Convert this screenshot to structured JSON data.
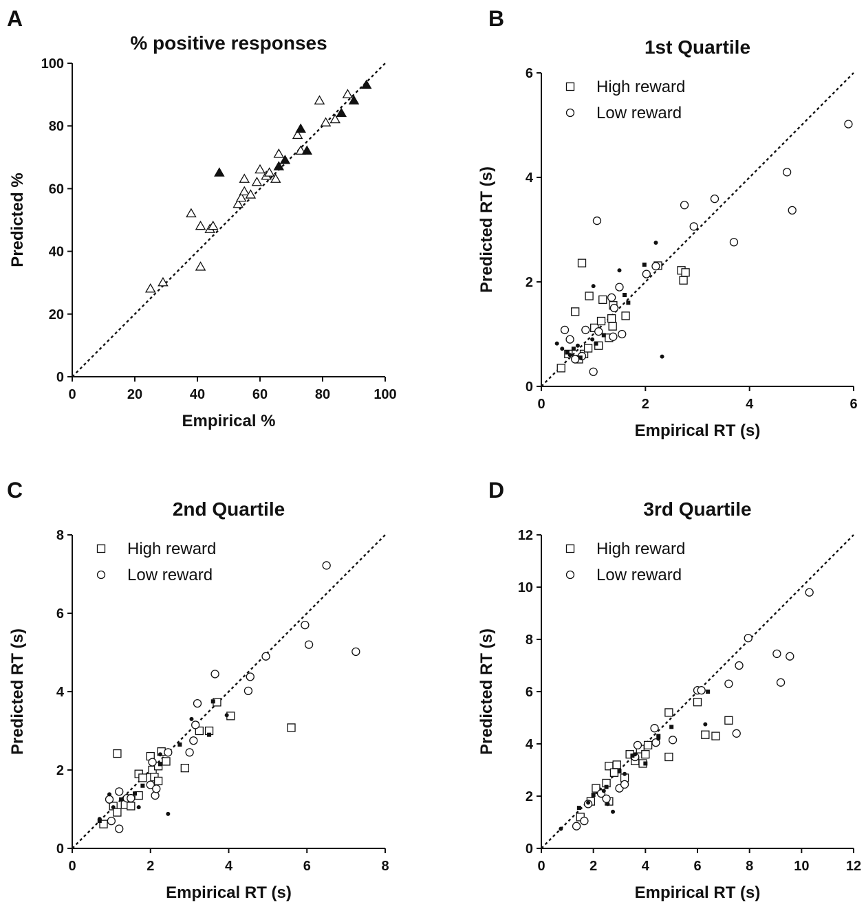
{
  "chart_data": [
    {
      "panel": "A",
      "type": "scatter",
      "title": "% positive responses",
      "xlabel": "Empirical %",
      "ylabel": "Predicted %",
      "xlim": [
        0,
        100
      ],
      "ylim": [
        0,
        100
      ],
      "xticks": [
        0,
        20,
        40,
        60,
        80,
        100
      ],
      "yticks": [
        0,
        20,
        40,
        60,
        80,
        100
      ],
      "grid": false,
      "identity_line": true,
      "legend": null,
      "series": [
        {
          "marker": "open-triangle",
          "points": [
            [
              25,
              28
            ],
            [
              29,
              30
            ],
            [
              38,
              52
            ],
            [
              41,
              48
            ],
            [
              41,
              35
            ],
            [
              44,
              47
            ],
            [
              45,
              48
            ],
            [
              53,
              55
            ],
            [
              54,
              57
            ],
            [
              55,
              63
            ],
            [
              55,
              59
            ],
            [
              57,
              58
            ],
            [
              59,
              62
            ],
            [
              60,
              66
            ],
            [
              62,
              64
            ],
            [
              63,
              65
            ],
            [
              65,
              63
            ],
            [
              66,
              71
            ],
            [
              72,
              77
            ],
            [
              73,
              72
            ],
            [
              79,
              88
            ],
            [
              81,
              81
            ],
            [
              84,
              82
            ],
            [
              88,
              90
            ]
          ]
        },
        {
          "marker": "filled-triangle",
          "points": [
            [
              47,
              65
            ],
            [
              66,
              67
            ],
            [
              68,
              69
            ],
            [
              73,
              79
            ],
            [
              75,
              72
            ],
            [
              86,
              84
            ],
            [
              90,
              88
            ],
            [
              94,
              93
            ]
          ]
        }
      ]
    },
    {
      "panel": "B",
      "type": "scatter",
      "title": "1st Quartile",
      "xlabel": "Empirical RT (s)",
      "ylabel": "Predicted RT (s)",
      "xlim": [
        0,
        6
      ],
      "ylim": [
        0,
        6
      ],
      "xticks": [
        0,
        2,
        4,
        6
      ],
      "yticks": [
        0,
        2,
        4,
        6
      ],
      "grid": false,
      "identity_line": true,
      "legend": {
        "position": "top-left",
        "entries": [
          {
            "marker": "open-square",
            "label": "High reward"
          },
          {
            "marker": "open-circle",
            "label": "Low reward"
          }
        ]
      },
      "series": [
        {
          "marker": "open-square",
          "points": [
            [
              0.38,
              0.35
            ],
            [
              0.65,
              1.43
            ],
            [
              0.78,
              2.36
            ],
            [
              0.92,
              1.73
            ],
            [
              1.02,
              1.12
            ],
            [
              1.1,
              0.78
            ],
            [
              1.15,
              1.25
            ],
            [
              1.18,
              1.66
            ],
            [
              1.3,
              0.93
            ],
            [
              1.35,
              1.3
            ],
            [
              1.37,
              1.15
            ],
            [
              1.38,
              1.55
            ],
            [
              1.62,
              1.35
            ],
            [
              2.69,
              2.22
            ],
            [
              2.73,
              2.03
            ],
            [
              2.77,
              2.18
            ],
            [
              2.24,
              2.31
            ],
            [
              0.52,
              0.62
            ],
            [
              0.72,
              0.52
            ],
            [
              0.82,
              0.62
            ],
            [
              0.9,
              0.73
            ]
          ]
        },
        {
          "marker": "open-circle",
          "points": [
            [
              0.45,
              1.08
            ],
            [
              0.55,
              0.9
            ],
            [
              0.65,
              0.52
            ],
            [
              0.78,
              0.58
            ],
            [
              0.85,
              1.08
            ],
            [
              1.0,
              0.28
            ],
            [
              1.07,
              3.17
            ],
            [
              1.1,
              1.05
            ],
            [
              1.35,
              1.7
            ],
            [
              1.38,
              0.95
            ],
            [
              1.4,
              1.5
            ],
            [
              1.5,
              1.9
            ],
            [
              1.55,
              1.0
            ],
            [
              2.02,
              2.15
            ],
            [
              2.2,
              2.3
            ],
            [
              2.75,
              3.47
            ],
            [
              2.93,
              3.06
            ],
            [
              3.33,
              3.59
            ],
            [
              3.7,
              2.76
            ],
            [
              4.72,
              4.1
            ],
            [
              4.82,
              3.37
            ],
            [
              5.9,
              5.02
            ]
          ]
        },
        {
          "marker": "filled-square",
          "points": [
            [
              0.5,
              0.65
            ],
            [
              0.62,
              0.72
            ],
            [
              0.75,
              0.55
            ],
            [
              1.05,
              0.82
            ],
            [
              1.2,
              0.98
            ],
            [
              1.6,
              1.75
            ],
            [
              1.67,
              1.6
            ],
            [
              1.98,
              2.33
            ]
          ]
        },
        {
          "marker": "filled-circle",
          "points": [
            [
              0.3,
              0.82
            ],
            [
              0.4,
              0.72
            ],
            [
              0.55,
              0.6
            ],
            [
              0.7,
              0.78
            ],
            [
              0.98,
              0.9
            ],
            [
              1.0,
              1.92
            ],
            [
              1.5,
              2.22
            ],
            [
              2.2,
              2.75
            ],
            [
              2.32,
              0.57
            ]
          ]
        }
      ]
    },
    {
      "panel": "C",
      "type": "scatter",
      "title": "2nd Quartile",
      "xlabel": "Empirical RT (s)",
      "ylabel": "Predicted RT (s)",
      "xlim": [
        0,
        8
      ],
      "ylim": [
        0,
        8
      ],
      "xticks": [
        0,
        2,
        4,
        6,
        8
      ],
      "yticks": [
        0,
        2,
        4,
        6,
        8
      ],
      "grid": false,
      "identity_line": true,
      "legend": {
        "position": "top-left",
        "entries": [
          {
            "marker": "open-square",
            "label": "High reward"
          },
          {
            "marker": "open-circle",
            "label": "Low reward"
          }
        ]
      },
      "series": [
        {
          "marker": "open-square",
          "points": [
            [
              0.8,
              0.62
            ],
            [
              1.05,
              1.08
            ],
            [
              1.15,
              0.92
            ],
            [
              1.15,
              2.42
            ],
            [
              1.35,
              1.12
            ],
            [
              1.5,
              1.08
            ],
            [
              1.7,
              1.35
            ],
            [
              1.7,
              1.9
            ],
            [
              1.8,
              1.8
            ],
            [
              2.0,
              2.35
            ],
            [
              2.05,
              2.0
            ],
            [
              2.1,
              1.82
            ],
            [
              2.2,
              1.72
            ],
            [
              2.2,
              2.1
            ],
            [
              2.28,
              2.47
            ],
            [
              2.4,
              2.22
            ],
            [
              2.88,
              2.05
            ],
            [
              3.25,
              3.0
            ],
            [
              3.5,
              3.0
            ],
            [
              3.7,
              3.73
            ],
            [
              4.05,
              3.38
            ],
            [
              5.6,
              3.08
            ]
          ]
        },
        {
          "marker": "open-circle",
          "points": [
            [
              0.95,
              1.25
            ],
            [
              1.0,
              0.7
            ],
            [
              1.2,
              0.5
            ],
            [
              1.2,
              1.45
            ],
            [
              1.4,
              1.28
            ],
            [
              1.5,
              1.28
            ],
            [
              2.0,
              1.62
            ],
            [
              2.05,
              2.2
            ],
            [
              2.12,
              1.35
            ],
            [
              2.15,
              1.52
            ],
            [
              2.45,
              2.45
            ],
            [
              3.0,
              2.45
            ],
            [
              3.1,
              2.75
            ],
            [
              3.15,
              3.15
            ],
            [
              3.2,
              3.7
            ],
            [
              3.65,
              4.45
            ],
            [
              4.5,
              4.02
            ],
            [
              4.55,
              4.38
            ],
            [
              4.95,
              4.9
            ],
            [
              5.95,
              5.7
            ],
            [
              6.05,
              5.2
            ],
            [
              6.5,
              7.22
            ],
            [
              7.25,
              5.02
            ]
          ]
        },
        {
          "marker": "filled-square",
          "points": [
            [
              0.7,
              0.7
            ],
            [
              1.25,
              1.25
            ],
            [
              1.6,
              1.4
            ],
            [
              1.8,
              1.6
            ],
            [
              2.25,
              2.15
            ],
            [
              2.75,
              2.65
            ],
            [
              3.5,
              2.9
            ],
            [
              3.6,
              3.75
            ]
          ]
        },
        {
          "marker": "filled-circle",
          "points": [
            [
              0.7,
              0.75
            ],
            [
              0.95,
              1.38
            ],
            [
              1.05,
              1.05
            ],
            [
              1.7,
              1.05
            ],
            [
              2.25,
              2.4
            ],
            [
              2.45,
              0.88
            ],
            [
              3.05,
              3.3
            ],
            [
              3.95,
              3.4
            ]
          ]
        }
      ]
    },
    {
      "panel": "D",
      "type": "scatter",
      "title": "3rd Quartile",
      "xlabel": "Empirical RT (s)",
      "ylabel": "Predicted RT (s)",
      "xlim": [
        0,
        12
      ],
      "ylim": [
        0,
        12
      ],
      "xticks": [
        0,
        2,
        4,
        6,
        8,
        10,
        12
      ],
      "yticks": [
        0,
        2,
        4,
        6,
        8,
        10,
        12
      ],
      "grid": false,
      "identity_line": true,
      "legend": {
        "position": "top-left",
        "entries": [
          {
            "marker": "open-square",
            "label": "High reward"
          },
          {
            "marker": "open-circle",
            "label": "Low reward"
          }
        ]
      },
      "series": [
        {
          "marker": "open-square",
          "points": [
            [
              1.5,
              1.2
            ],
            [
              1.9,
              1.8
            ],
            [
              2.1,
              2.3
            ],
            [
              2.5,
              2.5
            ],
            [
              2.6,
              1.8
            ],
            [
              2.6,
              3.15
            ],
            [
              2.8,
              2.9
            ],
            [
              2.9,
              3.2
            ],
            [
              3.2,
              2.7
            ],
            [
              3.4,
              3.6
            ],
            [
              3.6,
              3.35
            ],
            [
              3.8,
              3.8
            ],
            [
              3.9,
              3.25
            ],
            [
              4.0,
              3.6
            ],
            [
              4.1,
              3.95
            ],
            [
              4.9,
              5.2
            ],
            [
              4.9,
              3.5
            ],
            [
              6.0,
              5.6
            ],
            [
              6.3,
              4.35
            ],
            [
              6.7,
              4.3
            ],
            [
              7.2,
              4.9
            ]
          ]
        },
        {
          "marker": "open-circle",
          "points": [
            [
              1.35,
              0.85
            ],
            [
              1.65,
              1.05
            ],
            [
              1.8,
              1.7
            ],
            [
              2.3,
              2.1
            ],
            [
              2.5,
              1.9
            ],
            [
              3.0,
              2.3
            ],
            [
              3.2,
              2.45
            ],
            [
              3.6,
              3.5
            ],
            [
              3.7,
              3.95
            ],
            [
              4.35,
              4.6
            ],
            [
              4.4,
              4.05
            ],
            [
              5.05,
              4.15
            ],
            [
              6.0,
              6.05
            ],
            [
              6.15,
              6.05
            ],
            [
              7.2,
              6.3
            ],
            [
              7.6,
              7.0
            ],
            [
              7.5,
              4.4
            ],
            [
              7.95,
              8.05
            ],
            [
              9.05,
              7.45
            ],
            [
              9.2,
              6.35
            ],
            [
              9.55,
              7.35
            ],
            [
              10.3,
              9.8
            ]
          ]
        },
        {
          "marker": "filled-square",
          "points": [
            [
              1.45,
              1.55
            ],
            [
              2.0,
              2.05
            ],
            [
              2.5,
              2.35
            ],
            [
              3.0,
              2.95
            ],
            [
              3.5,
              3.55
            ],
            [
              4.0,
              3.25
            ],
            [
              4.5,
              4.3
            ],
            [
              5.0,
              4.65
            ],
            [
              6.4,
              6.0
            ]
          ]
        },
        {
          "marker": "filled-circle",
          "points": [
            [
              0.75,
              0.75
            ],
            [
              1.8,
              1.75
            ],
            [
              2.4,
              2.2
            ],
            [
              2.55,
              1.7
            ],
            [
              2.75,
              1.4
            ],
            [
              3.2,
              2.85
            ],
            [
              3.6,
              3.6
            ],
            [
              4.5,
              4.2
            ],
            [
              6.3,
              4.75
            ]
          ]
        }
      ]
    }
  ]
}
